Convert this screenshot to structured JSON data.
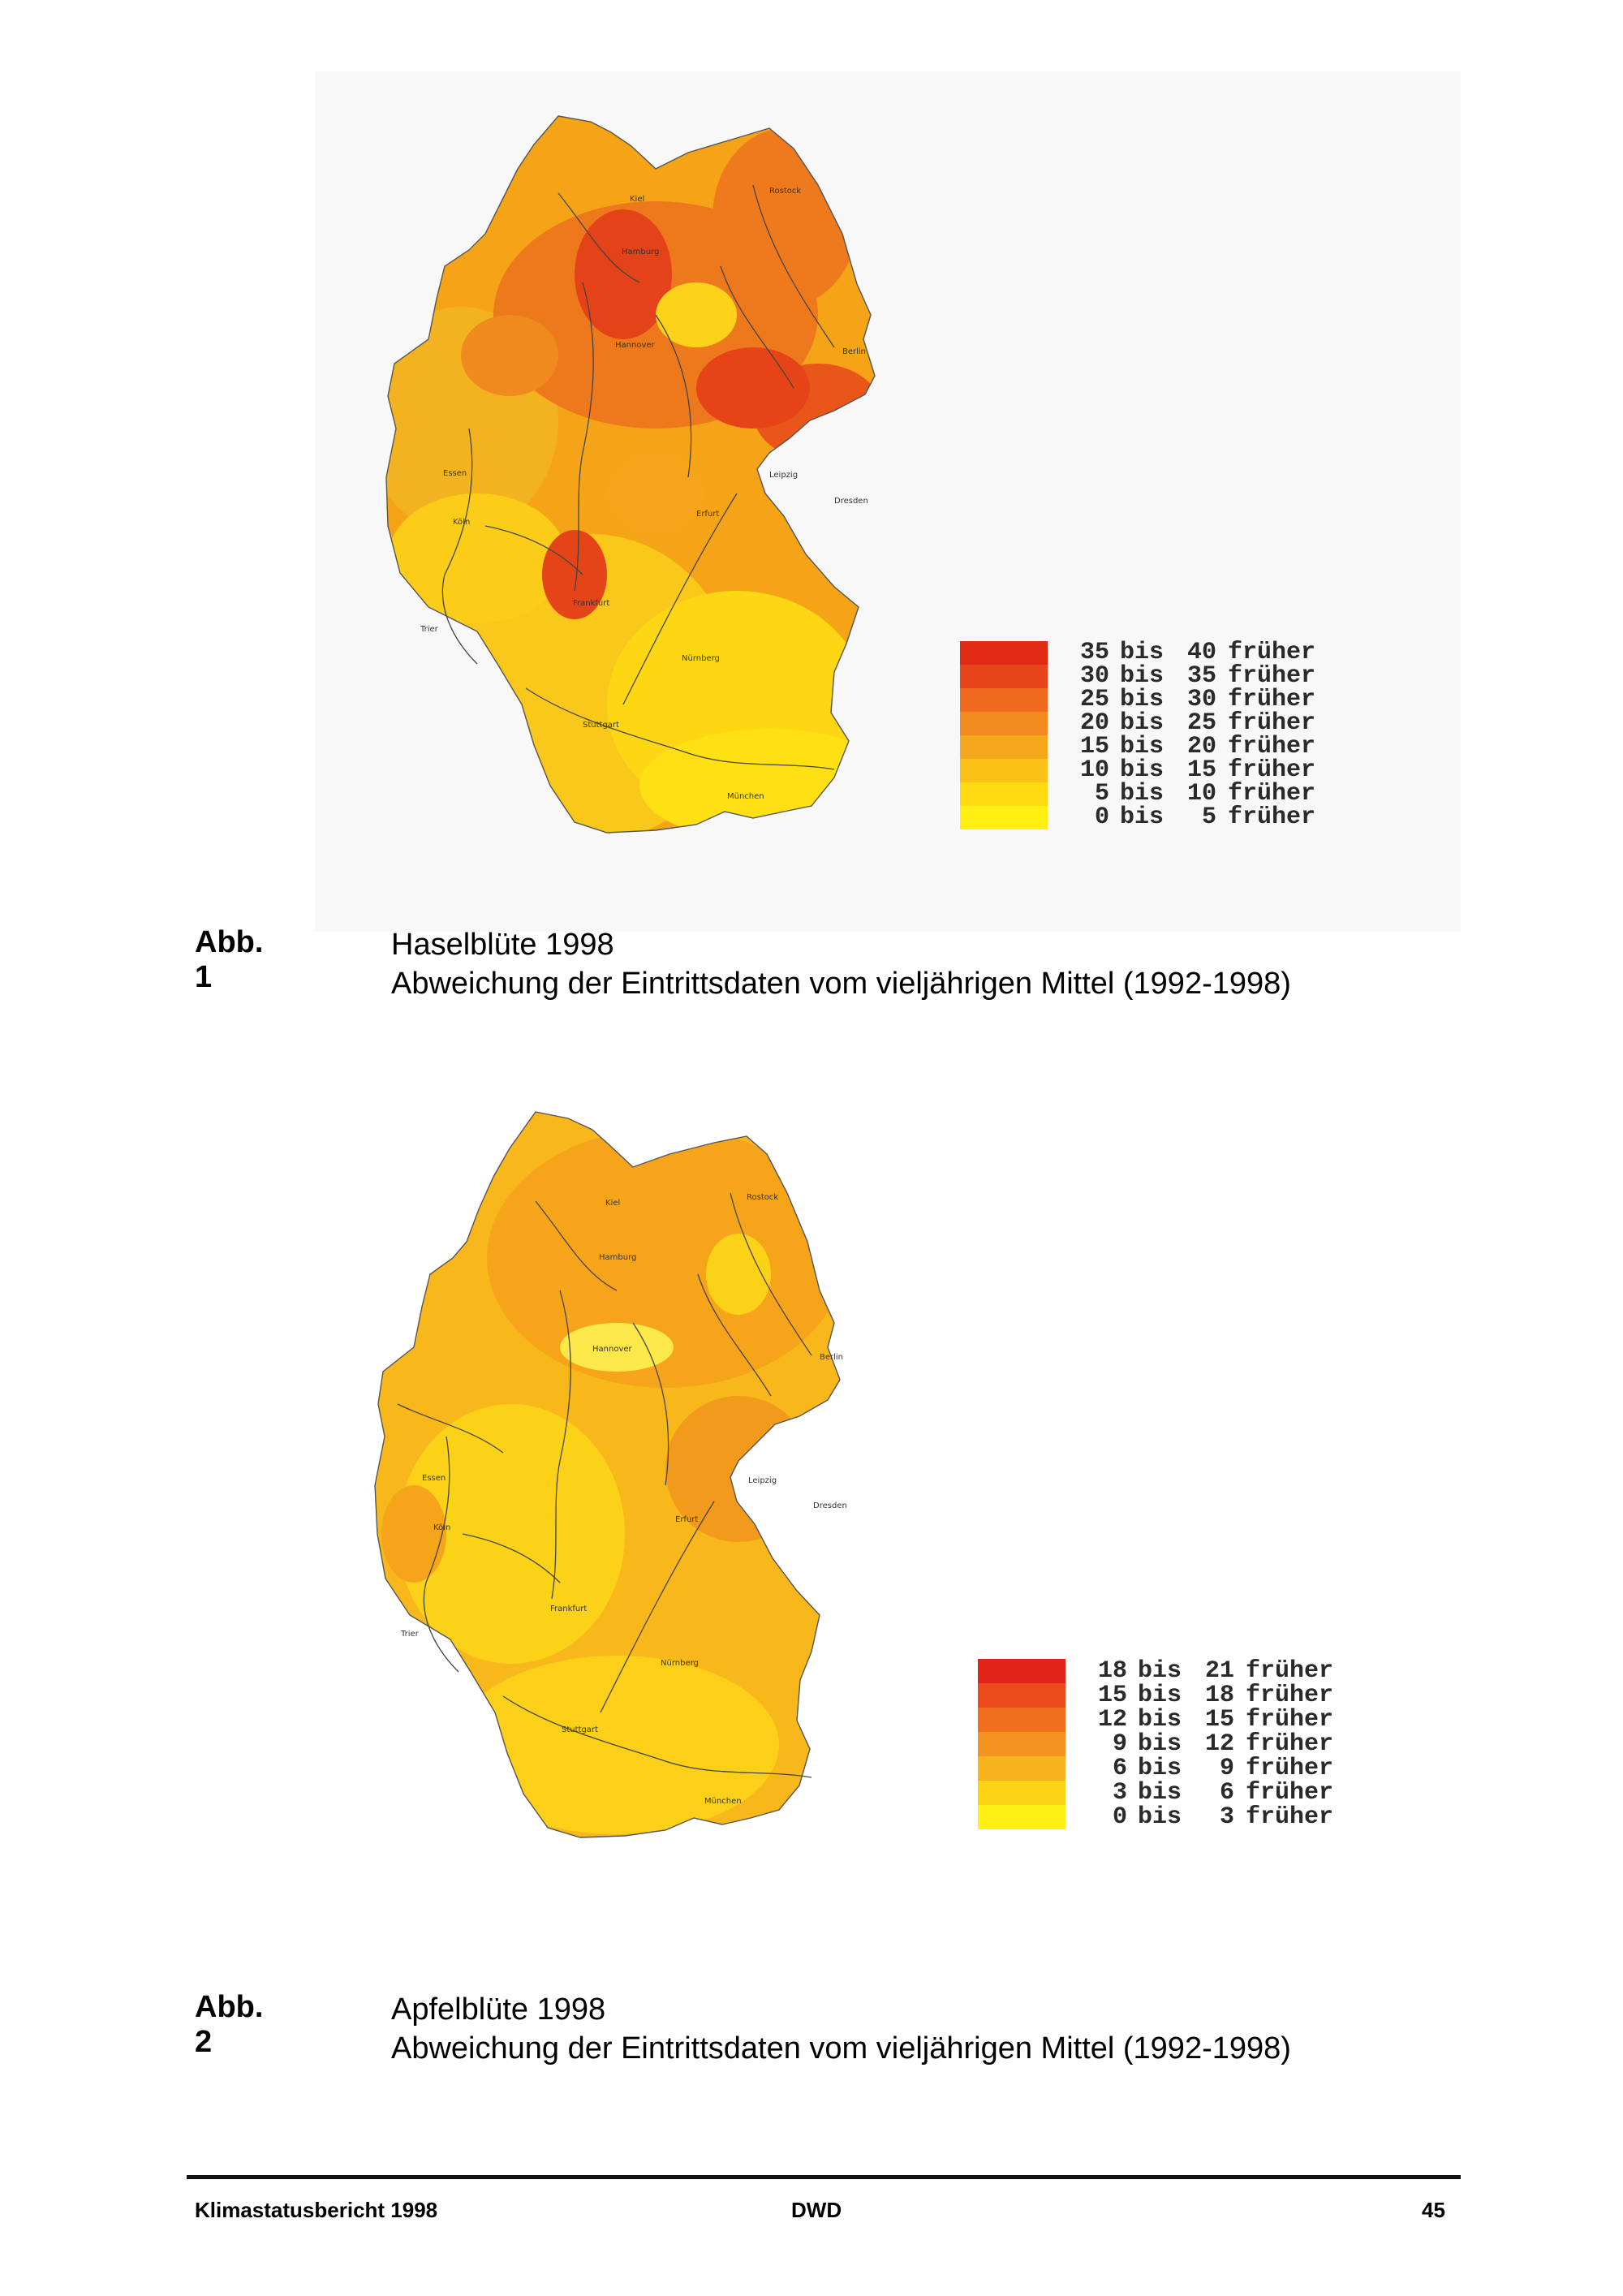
{
  "figures": [
    {
      "label": "Abb. 1",
      "title": "Haselblüte 1998",
      "subtitle": "Abweichung der Eintrittsdaten vom vieljährigen Mittel (1992-1998)",
      "cities": [
        "Kiel",
        "Rostock",
        "Hamburg",
        "Hannover",
        "Berlin",
        "Essen",
        "Köln",
        "Erfurt",
        "Leipzig",
        "Dresden",
        "Frankfurt",
        "Trier",
        "Nürnberg",
        "Stuttgart",
        "München"
      ],
      "legend": [
        {
          "from": "35",
          "to": "40",
          "color": "#e02a12"
        },
        {
          "from": "30",
          "to": "35",
          "color": "#e8461a"
        },
        {
          "from": "25",
          "to": "30",
          "color": "#ee6a1e"
        },
        {
          "from": "20",
          "to": "25",
          "color": "#f28c20"
        },
        {
          "from": "15",
          "to": "20",
          "color": "#f6a81c"
        },
        {
          "from": "10",
          "to": "15",
          "color": "#fac216"
        },
        {
          "from": "5",
          "to": "10",
          "color": "#fdda12"
        },
        {
          "from": "0",
          "to": "5",
          "color": "#fff012"
        }
      ]
    },
    {
      "label": "Abb. 2",
      "title": "Apfelblüte 1998",
      "subtitle": "Abweichung der Eintrittsdaten vom vieljährigen Mittel (1992-1998)",
      "cities": [
        "Kiel",
        "Rostock",
        "Hamburg",
        "Hannover",
        "Berlin",
        "Essen",
        "Köln",
        "Erfurt",
        "Leipzig",
        "Dresden",
        "Frankfurt",
        "Trier",
        "Nürnberg",
        "Stuttgart",
        "München"
      ],
      "legend": [
        {
          "from": "18",
          "to": "21",
          "color": "#e2231a"
        },
        {
          "from": "15",
          "to": "18",
          "color": "#ea4a1c"
        },
        {
          "from": "12",
          "to": "15",
          "color": "#f0701e"
        },
        {
          "from": "9",
          "to": "12",
          "color": "#f49420"
        },
        {
          "from": "6",
          "to": "9",
          "color": "#f8b41c"
        },
        {
          "from": "3",
          "to": "6",
          "color": "#fcd416"
        },
        {
          "from": "0",
          "to": "3",
          "color": "#fff014"
        }
      ]
    }
  ],
  "legend_words": {
    "bis": "bis",
    "suffix": "früher"
  },
  "footer": {
    "left": "Klimastatusbericht 1998",
    "center": "DWD",
    "right": "45"
  }
}
